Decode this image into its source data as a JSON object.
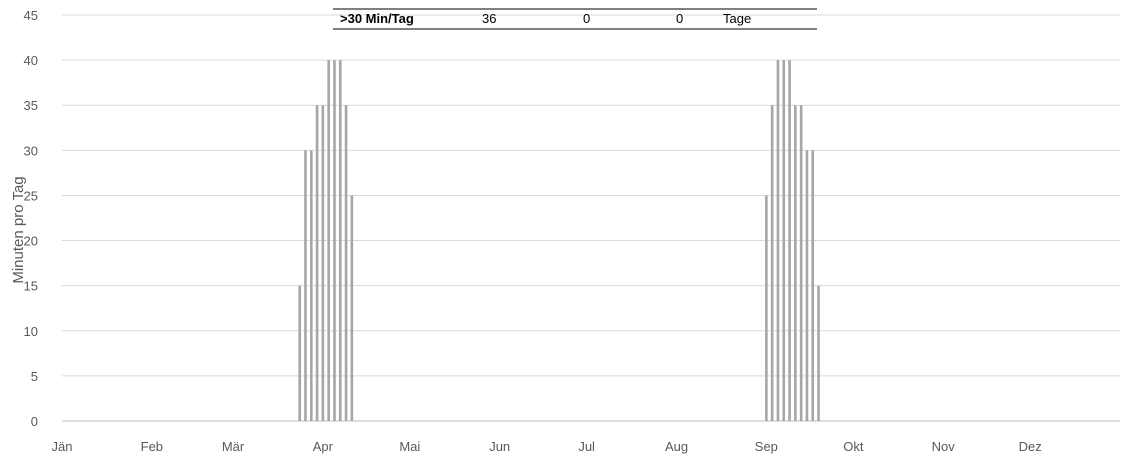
{
  "chart_data": {
    "type": "bar",
    "ylabel": "Minuten pro Tag",
    "xlabel": "",
    "ylim": [
      0,
      45
    ],
    "yticks": [
      0,
      5,
      10,
      15,
      20,
      25,
      30,
      35,
      40,
      45
    ],
    "grid": true,
    "x_categories": [
      "Jän",
      "Feb",
      "Mär",
      "Apr",
      "Mai",
      "Jun",
      "Jul",
      "Aug",
      "Sep",
      "Okt",
      "Nov",
      "Dez"
    ],
    "bar_color": "#a6a6a6",
    "series": [
      {
        "points": [
          {
            "x": "Mär 24",
            "y": 15
          },
          {
            "x": "Mär 26",
            "y": 30
          },
          {
            "x": "Mär 28",
            "y": 30
          },
          {
            "x": "Mär 30",
            "y": 35
          },
          {
            "x": "Apr 1",
            "y": 35
          },
          {
            "x": "Apr 3",
            "y": 40
          },
          {
            "x": "Apr 5",
            "y": 40
          },
          {
            "x": "Apr 7",
            "y": 40
          },
          {
            "x": "Apr 9",
            "y": 35
          },
          {
            "x": "Apr 11",
            "y": 25
          },
          {
            "x": "Sep 1",
            "y": 25
          },
          {
            "x": "Sep 3",
            "y": 35
          },
          {
            "x": "Sep 5",
            "y": 40
          },
          {
            "x": "Sep 7",
            "y": 40
          },
          {
            "x": "Sep 9",
            "y": 40
          },
          {
            "x": "Sep 11",
            "y": 35
          },
          {
            "x": "Sep 13",
            "y": 35
          },
          {
            "x": "Sep 15",
            "y": 30
          },
          {
            "x": "Sep 17",
            "y": 30
          },
          {
            "x": "Sep 19",
            "y": 15
          }
        ]
      }
    ],
    "summary_table": {
      "cells": [
        ">30 Min/Tag",
        "36",
        "0",
        "0",
        "Tage"
      ]
    }
  }
}
